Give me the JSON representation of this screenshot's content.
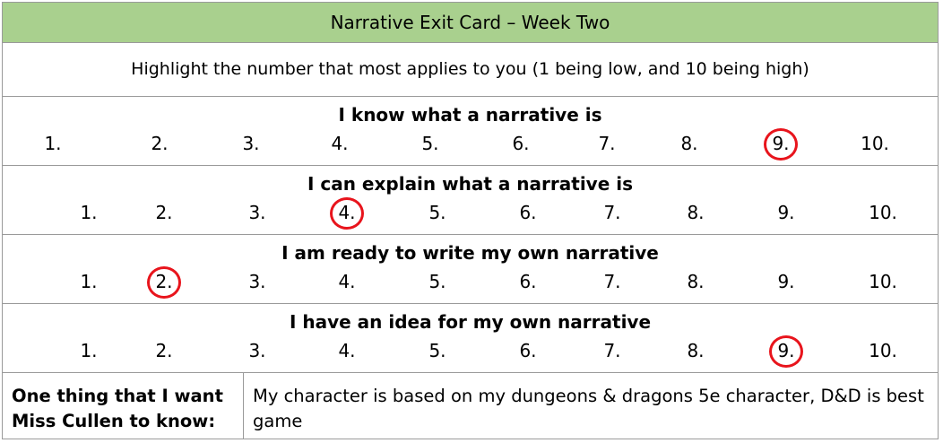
{
  "title": "Narrative Exit Card – Week Two",
  "instruction": "Highlight the number that most applies to you (1 being low, and 10 being high)",
  "questions": [
    {
      "label": "I know what a narrative is",
      "options": [
        "1.",
        "2.",
        "3.",
        "4.",
        "5.",
        "6.",
        "7.",
        "8.",
        "9.",
        "10."
      ],
      "circled": "9."
    },
    {
      "label": "I can explain what a narrative is",
      "options": [
        "1.",
        "2.",
        "3.",
        "4.",
        "5.",
        "6.",
        "7.",
        "8.",
        "9.",
        "10."
      ],
      "circled": "4."
    },
    {
      "label": "I am ready to write my own narrative",
      "options": [
        "1.",
        "2.",
        "3.",
        "4.",
        "5.",
        "6.",
        "7.",
        "8.",
        "9.",
        "10."
      ],
      "circled": "2."
    },
    {
      "label": "I have an idea for my own narrative",
      "options": [
        "1.",
        "2.",
        "3.",
        "4.",
        "5.",
        "6.",
        "7.",
        "8.",
        "9.",
        "10."
      ],
      "circled": "9."
    }
  ],
  "bottom": {
    "label_line1": "One thing that I want",
    "label_line2": "Miss Cullen to know:",
    "response": "My character is based on my dungeons & dragons 5e character, D&D is best game"
  },
  "colors": {
    "header_bg": "#a9d08e",
    "circle": "#e8141c",
    "border": "#9a9a9a"
  }
}
